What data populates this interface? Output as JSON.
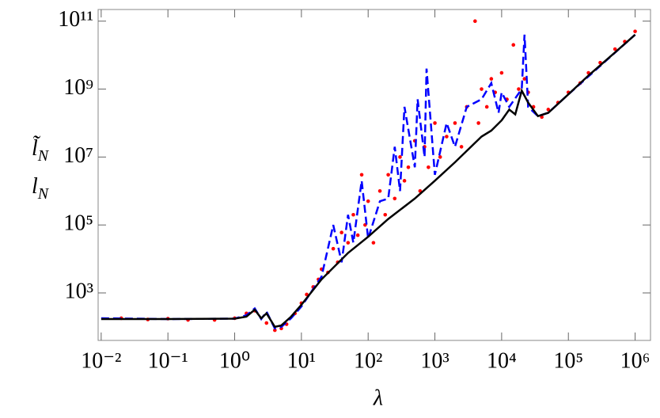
{
  "chart_data": {
    "type": "loglog",
    "xlabel": "λ",
    "ylabels": [
      {
        "base": "l̃",
        "sub": "N"
      },
      {
        "base": "l",
        "sub": "N"
      }
    ],
    "xscale": "log",
    "yscale": "log",
    "xlim": [
      0.009,
      1700000
    ],
    "ylim": [
      40,
      220000000000
    ],
    "xticks": [
      {
        "value": 0.01,
        "label": "10⁻²"
      },
      {
        "value": 0.1,
        "label": "10⁻¹"
      },
      {
        "value": 1,
        "label": "10⁰"
      },
      {
        "value": 10,
        "label": "10¹"
      },
      {
        "value": 100,
        "label": "10²"
      },
      {
        "value": 1000,
        "label": "10³"
      },
      {
        "value": 10000,
        "label": "10⁴"
      },
      {
        "value": 100000,
        "label": "10⁵"
      },
      {
        "value": 1000000,
        "label": "10⁶"
      }
    ],
    "yticks": [
      {
        "value": 1000,
        "label": "10³"
      },
      {
        "value": 100000,
        "label": "10⁵"
      },
      {
        "value": 10000000,
        "label": "10⁷"
      },
      {
        "value": 1000000000,
        "label": "10⁹"
      },
      {
        "value": 100000000000,
        "label": "10¹¹"
      }
    ],
    "series": [
      {
        "style": "scatter",
        "color": "#ff0000",
        "x": [
          0.02,
          0.05,
          0.1,
          0.2,
          0.5,
          1,
          1.5,
          2,
          3,
          4,
          5,
          6,
          8,
          10,
          12,
          15,
          18,
          20,
          25,
          30,
          35,
          40,
          50,
          60,
          70,
          80,
          90,
          100,
          120,
          150,
          180,
          200,
          250,
          300,
          350,
          400,
          500,
          600,
          700,
          800,
          1000,
          1200,
          1500,
          2000,
          2500,
          3000,
          4000,
          4500,
          5000,
          6000,
          7000,
          8000,
          10000,
          12000,
          15000,
          18000,
          22000,
          25000,
          30000,
          40000,
          50000,
          70000,
          100000,
          150000,
          200000,
          300000,
          500000,
          700000,
          1000000
        ],
        "values": [
          180,
          165,
          175,
          160,
          160,
          180,
          250,
          300,
          130,
          80,
          90,
          120,
          250,
          500,
          900,
          1500,
          2500,
          5000,
          4000,
          20000,
          8000,
          60000,
          30000,
          200000,
          50000,
          3000000,
          100000,
          500000,
          30000,
          1000000,
          200000,
          3000000,
          600000,
          10000000,
          2000000,
          5000000,
          30000000,
          1000000,
          20000000,
          5000000,
          100000000,
          10000000,
          40000000,
          100000000,
          20000000,
          300000000,
          100000000000,
          100000000,
          1000000000,
          300000000,
          2000000000,
          800000000,
          3000000000,
          500000000,
          20000000000,
          1000000000,
          2000000000,
          800000000,
          300000000,
          150000000,
          250000000,
          400000000,
          800000000,
          1500000000,
          3000000000,
          6000000000,
          15000000000,
          25000000000,
          50000000000
        ]
      },
      {
        "style": "dashed",
        "color": "#0000ff",
        "x": [
          0.01,
          0.1,
          1,
          1.5,
          2,
          2.5,
          3,
          4,
          5,
          7,
          10,
          20,
          30,
          40,
          50,
          60,
          80,
          100,
          150,
          200,
          250,
          300,
          350,
          500,
          550,
          700,
          750,
          1000,
          1500,
          2000,
          3000,
          5000,
          7000,
          9000,
          10000,
          13000,
          20000,
          22000,
          25000,
          35000,
          50000,
          100000,
          1000000
        ],
        "values": [
          180,
          170,
          175,
          220,
          350,
          170,
          280,
          90,
          100,
          180,
          400,
          3000,
          100000,
          8000,
          200000,
          30000,
          2000000,
          40000,
          500000,
          600000,
          20000000,
          1000000,
          300000000,
          5000000,
          500000000,
          10000000,
          4000000000,
          3000000,
          100000000,
          20000000,
          300000000,
          500000000,
          1500000000,
          200000000,
          800000000,
          300000000,
          1000000000,
          40000000000,
          300000000,
          160000000,
          200000000,
          700000000,
          40000000000
        ]
      },
      {
        "style": "solid",
        "color": "#000000",
        "x": [
          0.01,
          0.1,
          1,
          1.5,
          2,
          2.5,
          3,
          4,
          5,
          7,
          10,
          20,
          50,
          100,
          200,
          500,
          1000,
          2000,
          5000,
          7000,
          10000,
          13000,
          16000,
          20000,
          25000,
          35000,
          50000,
          100000,
          200000,
          500000,
          1000000
        ],
        "values": [
          170,
          170,
          175,
          200,
          320,
          180,
          250,
          100,
          110,
          200,
          450,
          2500,
          15000,
          45000,
          150000,
          600000,
          2000000,
          7000000,
          40000000,
          60000000,
          120000000,
          250000000,
          180000000,
          900000000,
          400000000,
          160000000,
          200000000,
          700000000,
          2500000000,
          12000000000,
          40000000000
        ]
      }
    ]
  }
}
